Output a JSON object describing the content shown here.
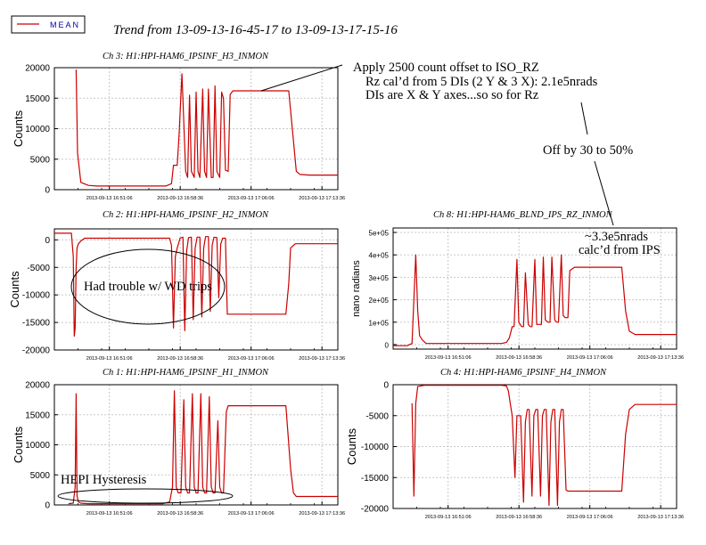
{
  "page": {
    "legend_label": "MEAN",
    "trend_title": "Trend from 13-09-13-16-45-17 to 13-09-13-17-15-16",
    "annotations": {
      "offset_note": [
        "Apply 2500 count offset to ISO_RZ",
        "Rz cal’d from 5 DIs (2 Y & 3 X): 2.1e5nrads",
        "DIs are X & Y axes...so so for Rz"
      ],
      "off_by": "Off by 30 to 50%",
      "ips_note": [
        "~3.3e5nrads",
        "calc’d from IPS"
      ],
      "wd_note": "Had trouble w/ WD trips",
      "hysteresis_note": "HEPI Hysteresis"
    },
    "colors": {
      "trace": "#cc0000",
      "grid": "#c8c8c8",
      "legend_text": "#0000aa"
    }
  },
  "chart_data": [
    {
      "id": "ch3",
      "type": "line",
      "title": "Ch 3: H1:HPI-HAM6_IPSINF_H3_INMON",
      "ylabel": "Counts",
      "ylim": [
        0,
        20000
      ],
      "yticks": [
        0,
        5000,
        10000,
        15000,
        20000
      ],
      "yticklabels": [
        "0",
        "5000",
        "10000",
        "15000",
        "20000"
      ],
      "xlim": [
        0,
        30
      ],
      "xticks": [
        5.82,
        13.32,
        20.82,
        28.32
      ],
      "xticklabels": [
        "2013-09-13 16:51:06",
        "2013-09-13 16:58:36",
        "2013-09-13 17:06:06",
        "2013-09-13 17:13:36"
      ],
      "series": [
        {
          "x": [
            0,
            2.2,
            2.3,
            2.45,
            2.8,
            3.6,
            4.5,
            6,
            8,
            10,
            11.8,
            12.4,
            12.6,
            12.7,
            12.8,
            13.0,
            13.2,
            13.5,
            13.9,
            14.1,
            14.3,
            14.5,
            14.8,
            15.0,
            15.2,
            15.4,
            15.7,
            15.9,
            16.1,
            16.3,
            16.6,
            16.8,
            17.0,
            17.2,
            17.5,
            17.7,
            17.9,
            18.1,
            18.4,
            18.6,
            18.9,
            19.1,
            19.5,
            20.5,
            22,
            24,
            24.8,
            25.3,
            25.6,
            26,
            27,
            28.5,
            29.5,
            30
          ],
          "y": [
            null,
            null,
            19700,
            6000,
            1200,
            700,
            600,
            600,
            600,
            600,
            600,
            1000,
            4000,
            4000,
            4000,
            4000,
            9000,
            19000,
            3000,
            2000,
            15500,
            3000,
            2000,
            16000,
            3000,
            2000,
            16500,
            3000,
            2000,
            16500,
            2000,
            2000,
            17000,
            3000,
            2000,
            16000,
            15000,
            3200,
            3000,
            15600,
            16200,
            16200,
            16200,
            16200,
            16200,
            16200,
            16200,
            8000,
            3000,
            2500,
            2400,
            2400,
            2400,
            2400
          ]
        }
      ]
    },
    {
      "id": "ch2",
      "type": "line",
      "title": "Ch 2: H1:HPI-HAM6_IPSINF_H2_INMON",
      "ylabel": "Counts",
      "ylim": [
        -20000,
        2000
      ],
      "yticks": [
        -20000,
        -15000,
        -10000,
        -5000,
        0
      ],
      "yticklabels": [
        "-20000",
        "-15000",
        "-10000",
        "-5000",
        "0"
      ],
      "xlim": [
        0,
        30
      ],
      "xticks": [
        5.82,
        13.32,
        20.82,
        28.32
      ],
      "xticklabels": [
        "2013-09-13 16:51:06",
        "2013-09-13 16:58:36",
        "2013-09-13 17:06:06",
        "2013-09-13 17:13:36"
      ],
      "series": [
        {
          "x": [
            0,
            1.2,
            1.8,
            2.0,
            2.1,
            2.2,
            2.3,
            2.4,
            2.55,
            2.8,
            3.2,
            5,
            8,
            11.5,
            12.0,
            12.2,
            12.4,
            12.6,
            12.8,
            13.0,
            13.3,
            13.6,
            13.8,
            14.0,
            14.2,
            14.5,
            14.7,
            14.9,
            15.1,
            15.4,
            15.6,
            15.8,
            16.0,
            16.3,
            16.5,
            16.7,
            16.9,
            17.2,
            17.4,
            17.6,
            17.8,
            18.1,
            18.3,
            18.6,
            19.5,
            22,
            24.5,
            24.8,
            25.0,
            25.5,
            27,
            29.5,
            30
          ],
          "y": [
            1200,
            1200,
            1200,
            -3000,
            -17500,
            -16000,
            -5000,
            -1500,
            -700,
            -200,
            300,
            300,
            300,
            300,
            300,
            300,
            -1000,
            -16000,
            -3000,
            -1500,
            300,
            500,
            -16500,
            -2000,
            400,
            500,
            -14500,
            -1500,
            500,
            500,
            -14000,
            -1500,
            600,
            600,
            -13000,
            -1000,
            500,
            400,
            -10500,
            -800,
            300,
            300,
            -13500,
            -13500,
            -13500,
            -13500,
            -13500,
            -8000,
            -1500,
            -700,
            -700,
            -700,
            -700
          ]
        }
      ]
    },
    {
      "id": "ch1",
      "type": "line",
      "title": "Ch 1: H1:HPI-HAM6_IPSINF_H1_INMON",
      "ylabel": "Counts",
      "ylim": [
        0,
        20000
      ],
      "yticks": [
        0,
        5000,
        10000,
        15000,
        20000
      ],
      "yticklabels": [
        "0",
        "5000",
        "10000",
        "15000",
        "20000"
      ],
      "xlim": [
        0,
        30
      ],
      "xticks": [
        5.82,
        13.32,
        20.82,
        28.32
      ],
      "xticklabels": [
        "2013-09-13 16:51:06",
        "2013-09-13 16:58:36",
        "2013-09-13 17:06:06",
        "2013-09-13 17:13:36"
      ],
      "series": [
        {
          "x": [
            0,
            1.5,
            2.0,
            2.2,
            2.3,
            2.4,
            2.55,
            2.8,
            3.5,
            5,
            8,
            11.5,
            12.2,
            12.5,
            12.7,
            12.9,
            13.1,
            13.4,
            13.7,
            13.9,
            14.1,
            14.3,
            14.6,
            14.8,
            15.0,
            15.2,
            15.5,
            15.7,
            15.9,
            16.1,
            16.4,
            16.6,
            16.8,
            17.0,
            17.3,
            17.5,
            17.7,
            17.9,
            18.2,
            18.4,
            18.7,
            19.5,
            22,
            24.5,
            25.0,
            25.3,
            25.6,
            26,
            28,
            29.5,
            30
          ],
          "y": [
            null,
            200,
            300,
            3000,
            18500,
            1500,
            500,
            300,
            200,
            200,
            200,
            200,
            500,
            3000,
            19000,
            3000,
            2000,
            2000,
            17500,
            3000,
            2000,
            2000,
            18500,
            3000,
            2000,
            2000,
            18500,
            3000,
            2000,
            2000,
            18000,
            3000,
            2000,
            2000,
            14000,
            3000,
            2000,
            2000,
            15500,
            16500,
            16500,
            16500,
            16500,
            16500,
            6000,
            2000,
            1400,
            1400,
            1400,
            1400,
            1400
          ]
        }
      ]
    },
    {
      "id": "ch8",
      "type": "line",
      "title": "Ch 8: H1:HPI-HAM6_BLND_IPS_RZ_INMON",
      "ylabel": "nano radians",
      "ylim": [
        -20000,
        520000
      ],
      "yticks": [
        0,
        100000,
        200000,
        300000,
        400000,
        500000
      ],
      "yticklabels": [
        "0",
        "1e+05",
        "2e+05",
        "3e+05",
        "4e+05",
        "5e+05"
      ],
      "xlim": [
        0,
        30
      ],
      "xticks": [
        5.82,
        13.32,
        20.82,
        28.32
      ],
      "xticklabels": [
        "2013-09-13 16:51:06",
        "2013-09-13 16:58:36",
        "2013-09-13 17:06:06",
        "2013-09-13 17:13:36"
      ],
      "series": [
        {
          "x": [
            0,
            1.5,
            2.0,
            2.2,
            2.4,
            2.6,
            2.8,
            3.1,
            3.5,
            5,
            8,
            11.5,
            12.0,
            12.3,
            12.6,
            12.8,
            13.1,
            13.3,
            13.6,
            13.8,
            14.0,
            14.3,
            14.5,
            14.7,
            15.0,
            15.2,
            15.4,
            15.7,
            15.9,
            16.1,
            16.4,
            16.6,
            16.8,
            17.1,
            17.3,
            17.5,
            17.8,
            18.0,
            18.2,
            18.5,
            18.7,
            19.2,
            20.5,
            22,
            24.2,
            24.6,
            25.0,
            25.6,
            27,
            29.5,
            30
          ],
          "y": [
            -5000,
            -5000,
            5000,
            200000,
            400000,
            150000,
            40000,
            20000,
            5000,
            5000,
            5000,
            5000,
            10000,
            30000,
            80000,
            80000,
            380000,
            100000,
            80000,
            80000,
            320000,
            90000,
            80000,
            80000,
            380000,
            90000,
            90000,
            90000,
            390000,
            110000,
            100000,
            100000,
            390000,
            110000,
            100000,
            100000,
            400000,
            130000,
            120000,
            120000,
            330000,
            345000,
            345000,
            345000,
            345000,
            150000,
            60000,
            45000,
            45000,
            45000,
            45000
          ]
        }
      ]
    },
    {
      "id": "ch4",
      "type": "line",
      "title": "Ch 4: H1:HPI-HAM6_IPSINF_H4_INMON",
      "ylabel": "Counts",
      "ylim": [
        -20000,
        0
      ],
      "yticks": [
        -20000,
        -15000,
        -10000,
        -5000,
        0
      ],
      "yticklabels": [
        "-20000",
        "-15000",
        "-10000",
        "-5000",
        "0"
      ],
      "xlim": [
        0,
        30
      ],
      "xticks": [
        5.82,
        13.32,
        20.82,
        28.32
      ],
      "xticklabels": [
        "2013-09-13 16:51:06",
        "2013-09-13 16:58:36",
        "2013-09-13 17:06:06",
        "2013-09-13 17:13:36"
      ],
      "series": [
        {
          "x": [
            0,
            1.5,
            2.0,
            2.2,
            2.4,
            2.6,
            2.9,
            3.3,
            4,
            6,
            9,
            11.5,
            12.0,
            12.2,
            12.4,
            12.6,
            12.9,
            13.1,
            13.3,
            13.5,
            13.8,
            14.0,
            14.2,
            14.4,
            14.7,
            14.9,
            15.1,
            15.3,
            15.6,
            15.8,
            16.0,
            16.2,
            16.5,
            16.7,
            16.9,
            17.1,
            17.4,
            17.6,
            17.8,
            18.0,
            18.3,
            18.5,
            19,
            20.5,
            22,
            24.2,
            24.6,
            25.0,
            25.6,
            27,
            29.5,
            30
          ],
          "y": [
            null,
            null,
            -3000,
            -18000,
            -3000,
            -300,
            -200,
            -100,
            -100,
            -100,
            -100,
            -100,
            -200,
            -1000,
            -3000,
            -5000,
            -15000,
            -5000,
            -5000,
            -5000,
            -19000,
            -6000,
            -4000,
            -4000,
            -18000,
            -5000,
            -4000,
            -4000,
            -18000,
            -5000,
            -4000,
            -4000,
            -19500,
            -6000,
            -4000,
            -4000,
            -19500,
            -6000,
            -4000,
            -4000,
            -17000,
            -17200,
            -17200,
            -17200,
            -17200,
            -17200,
            -8000,
            -4000,
            -3200,
            -3200,
            -3200,
            -3200
          ]
        }
      ]
    }
  ]
}
